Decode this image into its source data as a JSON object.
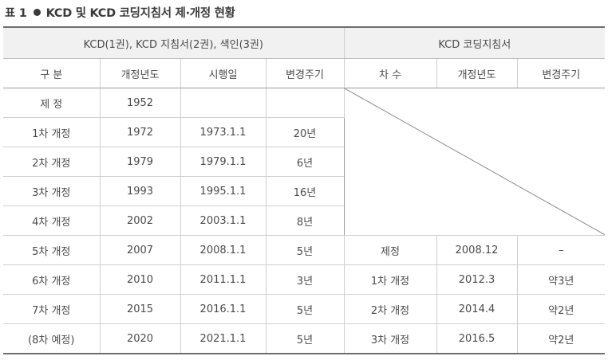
{
  "title": {
    "prefix": "표 1",
    "text": "KCD 및 KCD 코딩지침서 제·개정 현황"
  },
  "headers": {
    "group_left": "KCD(1권), KCD 지침서(2권), 색인(3권)",
    "group_right": "KCD 코딩지침서",
    "left_cols": [
      "구 분",
      "개정년도",
      "시행일",
      "변경주기"
    ],
    "right_cols": [
      "차 수",
      "개정년도",
      "변경주기"
    ]
  },
  "rows": [
    {
      "left": [
        "제 정",
        "1952",
        "",
        ""
      ]
    },
    {
      "left": [
        "1차 개정",
        "1972",
        "1973.1.1",
        "20년"
      ]
    },
    {
      "left": [
        "2차 개정",
        "1979",
        "1979.1.1",
        "6년"
      ]
    },
    {
      "left": [
        "3차 개정",
        "1993",
        "1995.1.1",
        "16년"
      ]
    },
    {
      "left": [
        "4차 개정",
        "2002",
        "2003.1.1",
        "8년"
      ]
    },
    {
      "left": [
        "5차 개정",
        "2007",
        "2008.1.1",
        "5년"
      ],
      "right": [
        "제정",
        "2008.12",
        "–"
      ]
    },
    {
      "left": [
        "6차 개정",
        "2010",
        "2011.1.1",
        "3년"
      ],
      "right": [
        "1차 개정",
        "2012.3",
        "약3년"
      ]
    },
    {
      "left": [
        "7차 개정",
        "2015",
        "2016.1.1",
        "5년"
      ],
      "right": [
        "2차 개정",
        "2014.4",
        "약2년"
      ]
    },
    {
      "left": [
        "(8차 예정)",
        "2020",
        "2021.1.1",
        "5년"
      ],
      "right": [
        "3차 개정",
        "2016.5",
        "약2년"
      ]
    }
  ]
}
